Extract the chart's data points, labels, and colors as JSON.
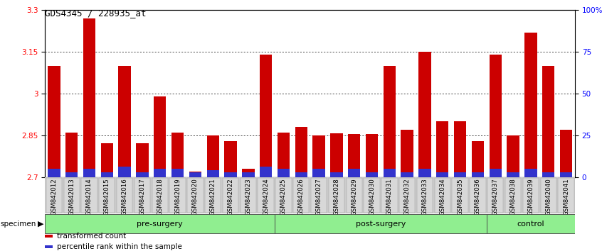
{
  "title": "GDS4345 / 228935_at",
  "samples": [
    "GSM842012",
    "GSM842013",
    "GSM842014",
    "GSM842015",
    "GSM842016",
    "GSM842017",
    "GSM842018",
    "GSM842019",
    "GSM842020",
    "GSM842021",
    "GSM842022",
    "GSM842023",
    "GSM842024",
    "GSM842025",
    "GSM842026",
    "GSM842027",
    "GSM842028",
    "GSM842029",
    "GSM842030",
    "GSM842031",
    "GSM842032",
    "GSM842033",
    "GSM842034",
    "GSM842035",
    "GSM842036",
    "GSM842037",
    "GSM842038",
    "GSM842039",
    "GSM842040",
    "GSM842041"
  ],
  "transformed_count": [
    3.1,
    2.86,
    3.27,
    2.82,
    3.1,
    2.82,
    2.99,
    2.86,
    2.72,
    2.85,
    2.83,
    2.73,
    3.14,
    2.86,
    2.88,
    2.85,
    2.856,
    2.855,
    2.855,
    3.1,
    2.87,
    3.15,
    2.9,
    2.9,
    2.83,
    3.14,
    2.85,
    3.22,
    3.1,
    2.87
  ],
  "percentile_rank_pct": [
    5,
    3,
    5,
    3,
    6,
    3,
    5,
    5,
    3,
    4,
    3,
    3,
    6,
    5,
    3,
    5,
    3,
    5,
    3,
    5,
    3,
    5,
    3,
    3,
    3,
    5,
    3,
    5,
    3,
    3
  ],
  "ymin": 2.7,
  "ymax": 3.3,
  "yticks": [
    2.7,
    2.85,
    3.0,
    3.15,
    3.3
  ],
  "ytick_labels": [
    "2.7",
    "2.85",
    "3",
    "3.15",
    "3.3"
  ],
  "right_yticks": [
    0,
    25,
    50,
    75,
    100
  ],
  "right_ytick_labels": [
    "0",
    "25",
    "50",
    "75",
    "100%"
  ],
  "bar_color_red": "#CC0000",
  "bar_color_blue": "#3333CC",
  "group_band_color": "#90EE90",
  "specimen_label": "specimen",
  "groups": [
    {
      "name": "pre-surgery",
      "start": 0,
      "end": 13
    },
    {
      "name": "post-surgery",
      "start": 13,
      "end": 25
    },
    {
      "name": "control",
      "start": 25,
      "end": 30
    }
  ],
  "legend_items": [
    {
      "color": "#CC0000",
      "label": "transformed count"
    },
    {
      "color": "#3333CC",
      "label": "percentile rank within the sample"
    }
  ]
}
